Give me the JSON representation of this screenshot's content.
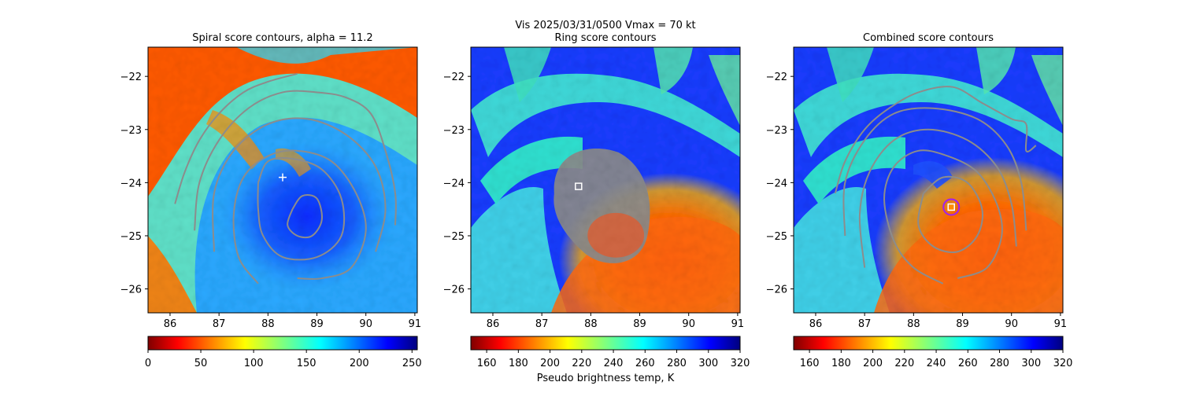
{
  "suptitle": "Vis  2025/03/31/0500    Vmax = 70 kt",
  "xlabel_bottom": "Pseudo brightness temp, K",
  "colors": {
    "contour": "#8c8c8c",
    "marker_edge": "#ffffff",
    "circle": "#a020f0",
    "cross": "#ffffff"
  },
  "chart_data": [
    {
      "type": "heatmap",
      "title": "Spiral score contours, alpha = 11.2",
      "xlim": [
        85.55,
        91.05
      ],
      "ylim": [
        -26.45,
        -21.45
      ],
      "xticks": [
        "86",
        "87",
        "88",
        "89",
        "90",
        "91"
      ],
      "yticks": [
        "−22",
        "−23",
        "−24",
        "−25",
        "−26"
      ],
      "colorbar": {
        "range": [
          0,
          255
        ],
        "reversed_jet": false,
        "ticks": [
          "0",
          "50",
          "100",
          "150",
          "200",
          "250"
        ]
      },
      "cross_marker": [
        88.3,
        -23.9
      ],
      "contours": [
        [
          [
            86.1,
            -24.4
          ],
          [
            86.3,
            -23.8
          ],
          [
            86.6,
            -23.2
          ],
          [
            87.0,
            -22.7
          ],
          [
            87.5,
            -22.3
          ],
          [
            88.0,
            -22.1
          ],
          [
            88.6,
            -21.95
          ]
        ],
        [
          [
            86.5,
            -24.9
          ],
          [
            86.6,
            -24.0
          ],
          [
            87.0,
            -23.2
          ],
          [
            87.6,
            -22.6
          ],
          [
            88.3,
            -22.3
          ],
          [
            89.0,
            -22.3
          ],
          [
            89.6,
            -22.4
          ],
          [
            90.1,
            -22.7
          ],
          [
            90.4,
            -23.4
          ],
          [
            90.6,
            -24.2
          ],
          [
            90.6,
            -24.8
          ]
        ],
        [
          [
            86.9,
            -25.3
          ],
          [
            86.9,
            -24.2
          ],
          [
            87.3,
            -23.4
          ],
          [
            88.0,
            -22.9
          ],
          [
            88.8,
            -22.8
          ],
          [
            89.6,
            -23.1
          ],
          [
            90.2,
            -23.7
          ],
          [
            90.4,
            -24.5
          ],
          [
            90.2,
            -25.3
          ]
        ],
        [
          [
            87.8,
            -25.9
          ],
          [
            87.4,
            -25.4
          ],
          [
            87.3,
            -24.6
          ],
          [
            87.5,
            -23.9
          ],
          [
            88.0,
            -23.5
          ],
          [
            88.6,
            -23.4
          ],
          [
            89.3,
            -23.6
          ],
          [
            89.8,
            -24.2
          ],
          [
            90.0,
            -24.9
          ],
          [
            89.7,
            -25.6
          ],
          [
            89.1,
            -25.8
          ],
          [
            88.6,
            -25.8
          ]
        ],
        [
          [
            87.8,
            -24.0
          ],
          [
            88.0,
            -23.6
          ],
          [
            88.5,
            -23.55
          ],
          [
            89.1,
            -23.75
          ],
          [
            89.5,
            -24.3
          ],
          [
            89.5,
            -25.0
          ],
          [
            89.0,
            -25.4
          ],
          [
            88.3,
            -25.4
          ],
          [
            87.9,
            -25.0
          ],
          [
            87.8,
            -24.5
          ],
          [
            87.8,
            -24.0
          ]
        ],
        [
          [
            88.5,
            -24.5
          ],
          [
            88.7,
            -24.25
          ],
          [
            89.0,
            -24.3
          ],
          [
            89.1,
            -24.7
          ],
          [
            88.9,
            -25.0
          ],
          [
            88.6,
            -25.0
          ],
          [
            88.4,
            -24.8
          ],
          [
            88.5,
            -24.5
          ]
        ]
      ]
    },
    {
      "type": "heatmap",
      "title": "Ring score contours",
      "xlim": [
        85.55,
        91.05
      ],
      "ylim": [
        -26.45,
        -21.45
      ],
      "xticks": [
        "86",
        "87",
        "88",
        "89",
        "90",
        "91"
      ],
      "yticks": [
        "−22",
        "−23",
        "−24",
        "−25",
        "−26"
      ],
      "colorbar": {
        "range": [
          150,
          320
        ],
        "reversed_jet": true,
        "ticks": [
          "160",
          "180",
          "200",
          "220",
          "240",
          "260",
          "280",
          "300",
          "320"
        ]
      },
      "square_marker": [
        87.75,
        -24.07
      ],
      "blob_center": [
        88.25,
        -24.45
      ],
      "blob_radius": [
        1.05,
        1.2
      ]
    },
    {
      "type": "heatmap",
      "title": "Combined score contours",
      "xlim": [
        85.55,
        91.05
      ],
      "ylim": [
        -26.45,
        -21.45
      ],
      "xticks": [
        "86",
        "87",
        "88",
        "89",
        "90",
        "91"
      ],
      "yticks": [
        "−22",
        "−23",
        "−24",
        "−25",
        "−26"
      ],
      "colorbar": {
        "range": [
          150,
          320
        ],
        "reversed_jet": true,
        "ticks": [
          "160",
          "180",
          "200",
          "220",
          "240",
          "260",
          "280",
          "300",
          "320"
        ]
      },
      "square_marker": [
        88.77,
        -24.46
      ],
      "circle_marker": [
        88.77,
        -24.46
      ],
      "contours": [
        [
          [
            86.4,
            -24.2
          ],
          [
            86.6,
            -23.6
          ],
          [
            87.0,
            -23.0
          ],
          [
            87.5,
            -22.6
          ],
          [
            88.1,
            -22.3
          ],
          [
            88.8,
            -22.2
          ],
          [
            89.4,
            -22.5
          ],
          [
            90.0,
            -22.8
          ],
          [
            90.3,
            -22.9
          ],
          [
            90.3,
            -23.4
          ],
          [
            90.5,
            -23.3
          ]
        ],
        [
          [
            86.6,
            -25.0
          ],
          [
            86.6,
            -24.0
          ],
          [
            87.0,
            -23.2
          ],
          [
            87.6,
            -22.7
          ],
          [
            88.4,
            -22.6
          ],
          [
            89.3,
            -22.8
          ],
          [
            89.9,
            -23.3
          ],
          [
            90.2,
            -24.0
          ],
          [
            90.3,
            -24.9
          ]
        ],
        [
          [
            87.0,
            -25.6
          ],
          [
            86.9,
            -24.6
          ],
          [
            87.1,
            -23.8
          ],
          [
            87.6,
            -23.2
          ],
          [
            88.3,
            -23.0
          ],
          [
            89.1,
            -23.2
          ],
          [
            89.7,
            -23.7
          ],
          [
            90.0,
            -24.4
          ],
          [
            90.1,
            -25.2
          ]
        ],
        [
          [
            88.6,
            -25.9
          ],
          [
            88.0,
            -25.6
          ],
          [
            87.6,
            -25.1
          ],
          [
            87.4,
            -24.3
          ],
          [
            87.6,
            -23.7
          ],
          [
            88.1,
            -23.4
          ],
          [
            88.7,
            -23.5
          ],
          [
            89.3,
            -23.8
          ],
          [
            89.7,
            -24.4
          ],
          [
            89.8,
            -25.0
          ],
          [
            89.5,
            -25.6
          ],
          [
            88.9,
            -25.8
          ]
        ],
        [
          [
            88.2,
            -24.2
          ],
          [
            88.6,
            -23.9
          ],
          [
            89.1,
            -24.0
          ],
          [
            89.4,
            -24.5
          ],
          [
            89.3,
            -25.0
          ],
          [
            88.9,
            -25.3
          ],
          [
            88.4,
            -25.2
          ],
          [
            88.1,
            -24.8
          ],
          [
            88.2,
            -24.2
          ]
        ]
      ]
    }
  ]
}
